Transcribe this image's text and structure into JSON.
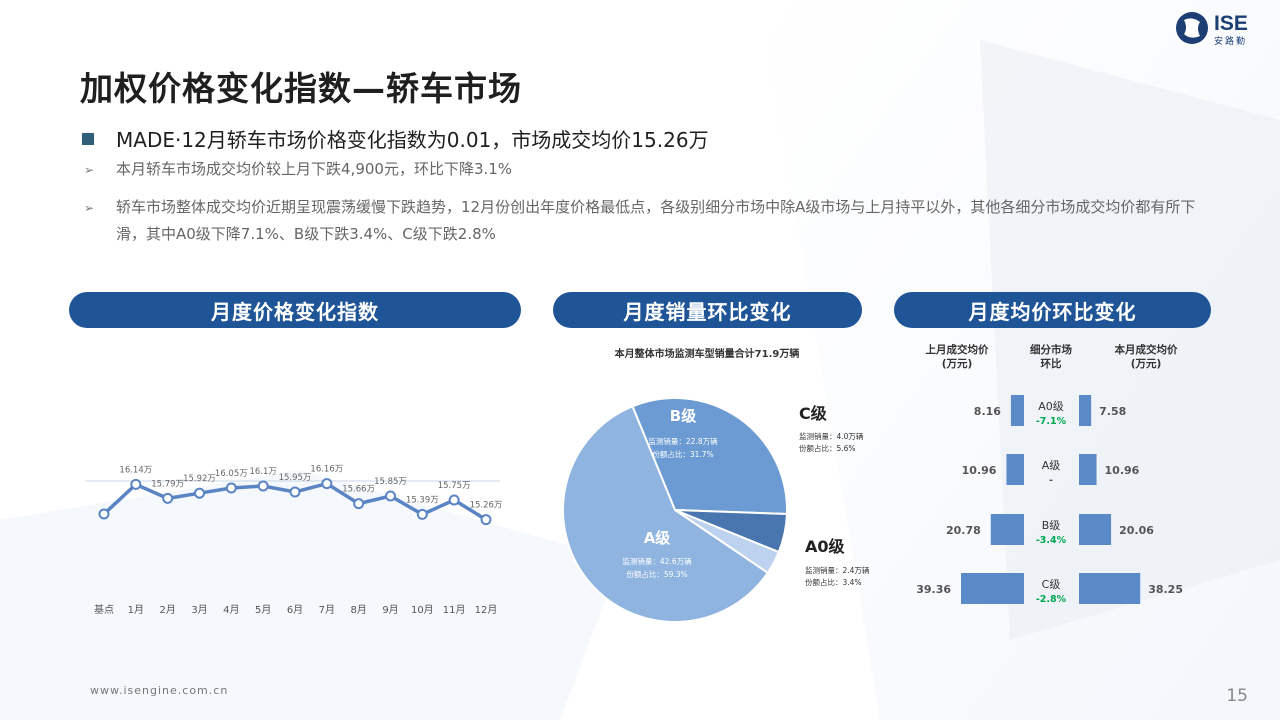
{
  "title": "加权价格变化指数—轿车市场",
  "logo": {
    "name": "ISE",
    "sub": "安路勤"
  },
  "headline": "MADE·12月轿车市场价格变化指数为0.01，市场成交均价15.26万",
  "bullets": [
    "本月轿车市场成交均价较上月下跌4,900元，环比下降3.1%",
    "轿车市场整体成交均价近期呈现震荡缓慢下跌趋势，12月份创出年度价格最低点，各级别细分市场中除A级市场与上月持平以外，其他各细分市场成交均价都有所下滑，其中A0级下降7.1%、B级下跌3.4%、C级下跌2.8%"
  ],
  "sections": {
    "index": "月度价格变化指数",
    "sales": "月度销量环比变化",
    "price": "月度均价环比变化"
  },
  "footer": {
    "url": "www.isengine.com.cn",
    "page": "15"
  },
  "colors": {
    "pill": "#1f5597",
    "line": "#5b84c4",
    "pieB": "#6b9bd2",
    "pieA": "#8fb4e0",
    "pieC": "#4a76b0",
    "pieA0": "#bcd2ee",
    "bar": "#5b8ac8",
    "green": "#00a651"
  },
  "chart_data": [
    {
      "type": "line",
      "categories": [
        "基点",
        "1月",
        "2月",
        "3月",
        "4月",
        "5月",
        "6月",
        "7月",
        "8月",
        "9月",
        "10月",
        "11月",
        "12月"
      ],
      "values": [
        15.4,
        16.14,
        15.79,
        15.92,
        16.05,
        16.1,
        15.95,
        16.16,
        15.66,
        15.85,
        15.39,
        15.75,
        15.26
      ],
      "data_labels": [
        "",
        "16.14万",
        "15.79万",
        "15.92万",
        "16.05万",
        "16.1万",
        "15.95万",
        "16.16万",
        "15.66万",
        "15.85万",
        "15.39万",
        "15.75万",
        "15.26万"
      ],
      "ylim": [
        13.0,
        17.5
      ]
    },
    {
      "type": "pie",
      "title": "本月整体市场监测车型销量合计71.9万辆",
      "slices": [
        {
          "name": "B级",
          "value": 22.8,
          "sales": "监测销量：22.8万辆",
          "share": "份额占比：31.7%"
        },
        {
          "name": "C级",
          "value": 4.0,
          "sales": "监测销量：4.0万辆",
          "share": "份额占比：5.6%"
        },
        {
          "name": "A0级",
          "value": 2.4,
          "sales": "监测销量：2.4万辆",
          "share": "份额占比：3.4%"
        },
        {
          "name": "A级",
          "value": 42.6,
          "sales": "监测销量：42.6万辆",
          "share": "份额占比：59.3%"
        }
      ]
    },
    {
      "type": "bar",
      "headers": {
        "left": [
          "上月成交均价",
          "(万元)"
        ],
        "mid": [
          "细分市场",
          "环比"
        ],
        "right": [
          "本月成交均价",
          "(万元)"
        ]
      },
      "rows": [
        {
          "segment": "A0级",
          "prev": 8.16,
          "curr": 7.58,
          "change": "-7.1%"
        },
        {
          "segment": "A级",
          "prev": 10.96,
          "curr": 10.96,
          "change": "-"
        },
        {
          "segment": "B级",
          "prev": 20.78,
          "curr": 20.06,
          "change": "-3.4%"
        },
        {
          "segment": "C级",
          "prev": 39.36,
          "curr": 38.25,
          "change": "-2.8%"
        }
      ]
    }
  ]
}
